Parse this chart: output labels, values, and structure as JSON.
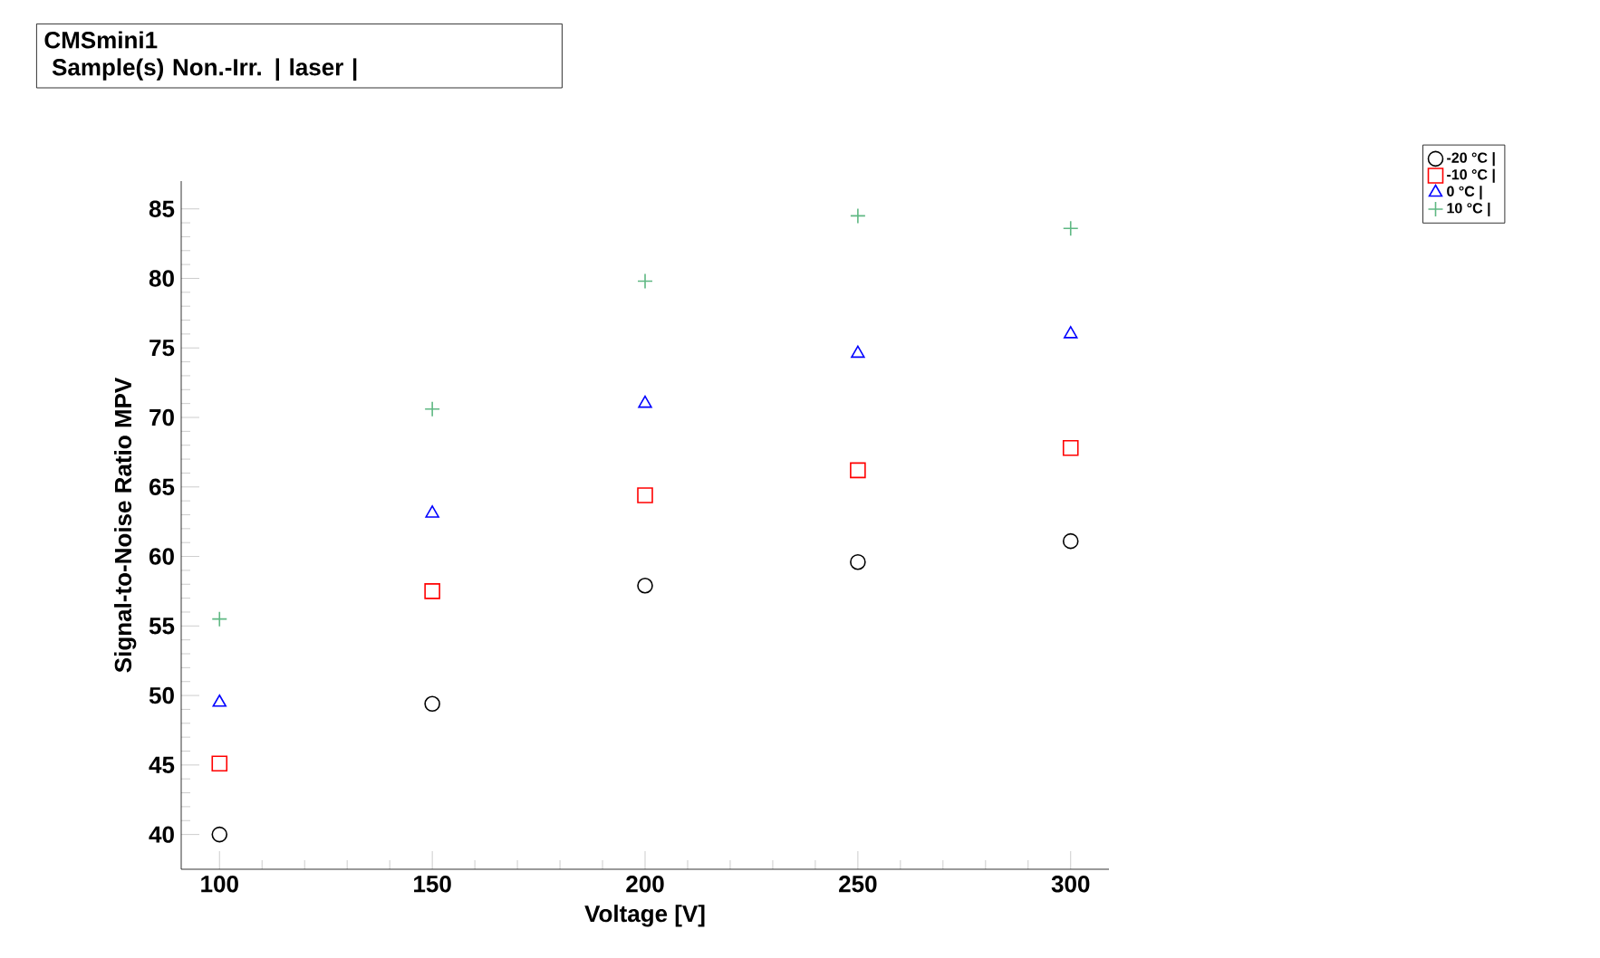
{
  "chart_data": {
    "type": "scatter",
    "title": "CMSmini1",
    "subtitle": "Sample(s) Non.-Irr. | laser |",
    "xlabel": "Voltage [V]",
    "ylabel": "Signal-to-Noise Ratio MPV",
    "x": [
      100,
      150,
      200,
      250,
      300
    ],
    "series": [
      {
        "name": "-20 °C |",
        "color": "#000000",
        "marker": "circle",
        "values": [
          40.0,
          49.4,
          57.9,
          59.6,
          61.1
        ]
      },
      {
        "name": "-10 °C |",
        "color": "#ff0000",
        "marker": "square",
        "values": [
          45.1,
          57.5,
          64.4,
          66.2,
          67.8
        ]
      },
      {
        "name": "0 °C |",
        "color": "#0000ff",
        "marker": "triangle",
        "values": [
          49.5,
          63.1,
          71.0,
          74.6,
          76.0
        ]
      },
      {
        "name": "10 °C |",
        "color": "#5fb883",
        "marker": "cross",
        "values": [
          55.5,
          70.6,
          79.8,
          84.5,
          83.6
        ]
      }
    ],
    "xlim": [
      91,
      309
    ],
    "ylim": [
      37.5,
      87
    ],
    "xticks": [
      100,
      150,
      200,
      250,
      300
    ],
    "yticks": [
      40,
      45,
      50,
      55,
      60,
      65,
      70,
      75,
      80,
      85
    ],
    "grid": false,
    "legend": "top right"
  }
}
